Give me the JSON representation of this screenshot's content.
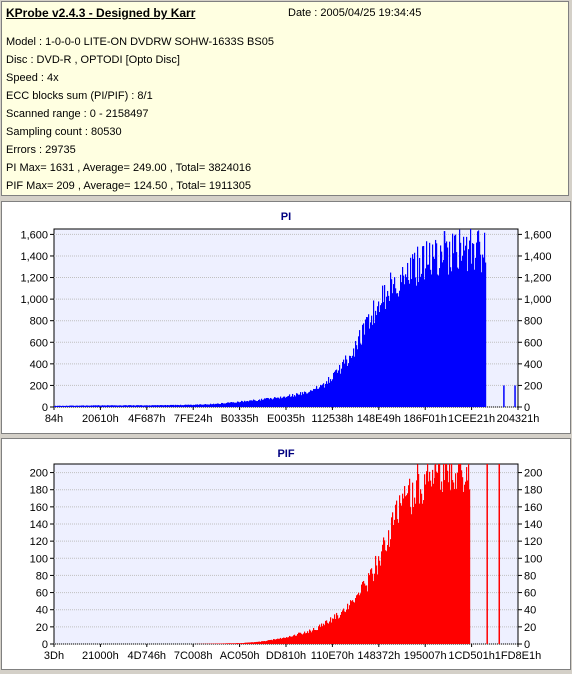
{
  "header": {
    "title": "KProbe v2.4.3 - Designed by Karr",
    "date": "Date : 2005/04/25 19:34:45",
    "lines": [
      "Model : 1-0-0-0 LITE-ON DVDRW SOHW-1633S BS05",
      "Disc : DVD-R , OPTODI [Opto Disc]",
      "Speed : 4x",
      "ECC blocks sum (PI/PIF) : 8/1",
      "Scanned range : 0 - 2158497",
      "Sampling count : 80530",
      "Errors : 29735",
      "PI Max= 1631 , Average= 249.00 , Total= 3824016",
      "PIF Max= 209 , Average= 124.50 , Total= 1911305"
    ]
  },
  "colors": {
    "pi": "#0000ff",
    "pif": "#ff0000",
    "plot_bg": "#eef0ff"
  },
  "chart_data": [
    {
      "type": "area",
      "title": "PI",
      "x_tick_labels": [
        "84h",
        "20610h",
        "4F687h",
        "7FE24h",
        "B0335h",
        "E0035h",
        "112538h",
        "148E49h",
        "186F01h",
        "1CEE21h",
        "204321h"
      ],
      "y_ticks": [
        0,
        200,
        400,
        600,
        800,
        1000,
        1200,
        1400,
        1600
      ],
      "y_tick_labels": [
        "0",
        "200",
        "400",
        "600",
        "800",
        "1,000",
        "1,200",
        "1,400",
        "1,600"
      ],
      "ylim": [
        0,
        1650
      ],
      "x_fraction": [
        0,
        0.1,
        0.2,
        0.3,
        0.35,
        0.4,
        0.45,
        0.5,
        0.55,
        0.58,
        0.6,
        0.62,
        0.65,
        0.67,
        0.7,
        0.72,
        0.76,
        0.8,
        0.83,
        0.84,
        0.85,
        0.88,
        0.9,
        0.92,
        0.93
      ],
      "values": [
        10,
        15,
        15,
        20,
        30,
        50,
        70,
        100,
        140,
        200,
        280,
        380,
        550,
        750,
        950,
        1100,
        1250,
        1350,
        1400,
        1430,
        1420,
        1440,
        1440,
        1440,
        1440
      ],
      "spikes": [
        {
          "x_fraction": 0.968,
          "value": 200
        },
        {
          "x_fraction": 0.992,
          "value": 200
        }
      ],
      "max_value": 1631
    },
    {
      "type": "area",
      "title": "PIF",
      "x_tick_labels": [
        "3Dh",
        "21000h",
        "4D746h",
        "7C008h",
        "AC050h",
        "DD810h",
        "110E70h",
        "148372h",
        "195007h",
        "1CD501h",
        "1FD8E1h"
      ],
      "y_ticks": [
        0,
        20,
        40,
        60,
        80,
        100,
        120,
        140,
        160,
        180,
        200
      ],
      "y_tick_labels": [
        "0",
        "20",
        "40",
        "60",
        "80",
        "100",
        "120",
        "140",
        "160",
        "180",
        "200"
      ],
      "ylim": [
        0,
        210
      ],
      "x_fraction": [
        0,
        0.2,
        0.3,
        0.4,
        0.45,
        0.5,
        0.55,
        0.58,
        0.6,
        0.63,
        0.65,
        0.68,
        0.7,
        0.72,
        0.74,
        0.76,
        0.78,
        0.8,
        0.82,
        0.85,
        0.89,
        0.896
      ],
      "values": [
        0,
        0,
        0,
        1,
        3,
        8,
        15,
        22,
        30,
        40,
        55,
        75,
        100,
        125,
        150,
        170,
        185,
        195,
        205,
        208,
        208,
        208
      ],
      "lines": [
        {
          "x_fraction": 0.932,
          "value": 210
        },
        {
          "x_fraction": 0.958,
          "value": 210
        }
      ],
      "max_value": 209
    }
  ]
}
